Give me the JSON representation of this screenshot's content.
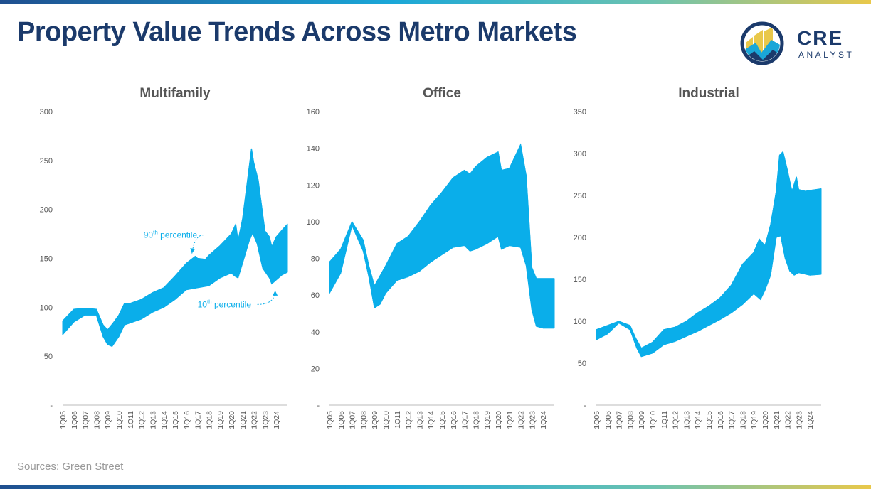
{
  "page": {
    "title": "Property Value Trends Across Metro Markets",
    "source": "Sources: Green Street",
    "logo": {
      "name": "CRE",
      "sub": "ANALYST"
    }
  },
  "colors": {
    "band": "#0aaeea",
    "title": "#1b3a6b",
    "axis": "#555555"
  },
  "chart_data": [
    {
      "type": "area",
      "title": "Multifamily",
      "ylim": [
        0,
        300
      ],
      "yticks": [
        0,
        50,
        100,
        150,
        200,
        250,
        300
      ],
      "ytick_labels": [
        "-",
        "50",
        "100",
        "150",
        "200",
        "250",
        "300"
      ],
      "categories": [
        "1Q05",
        "1Q06",
        "1Q07",
        "1Q08",
        "1Q09",
        "1Q10",
        "1Q11",
        "1Q12",
        "1Q13",
        "1Q14",
        "1Q15",
        "1Q16",
        "1Q17",
        "1Q18",
        "1Q19",
        "1Q20",
        "1Q21",
        "1Q22",
        "1Q23",
        "1Q24"
      ],
      "series": [
        {
          "name": "90th percentile",
          "values": [
            [
              2005.0,
              86
            ],
            [
              2006.0,
              98
            ],
            [
              2007.0,
              99
            ],
            [
              2008.0,
              98
            ],
            [
              2008.6,
              82
            ],
            [
              2009.0,
              77
            ],
            [
              2009.5,
              84
            ],
            [
              2010.0,
              92
            ],
            [
              2010.5,
              104
            ],
            [
              2011.0,
              104
            ],
            [
              2012.0,
              108
            ],
            [
              2013.0,
              115
            ],
            [
              2014.0,
              120
            ],
            [
              2015.0,
              132
            ],
            [
              2016.0,
              145
            ],
            [
              2016.8,
              152
            ],
            [
              2017.0,
              150
            ],
            [
              2017.7,
              149
            ],
            [
              2018.0,
              153
            ],
            [
              2019.0,
              163
            ],
            [
              2020.0,
              175
            ],
            [
              2020.4,
              185
            ],
            [
              2020.6,
              168
            ],
            [
              2021.0,
              190
            ],
            [
              2021.5,
              235
            ],
            [
              2021.8,
              262
            ],
            [
              2022.0,
              248
            ],
            [
              2022.4,
              230
            ],
            [
              2022.8,
              195
            ],
            [
              2023.0,
              178
            ],
            [
              2023.4,
              172
            ],
            [
              2023.6,
              162
            ],
            [
              2024.0,
              172
            ],
            [
              2024.6,
              180
            ],
            [
              2025.0,
              185
            ]
          ]
        },
        {
          "name": "10th percentile",
          "values": [
            [
              2005.0,
              72
            ],
            [
              2006.0,
              85
            ],
            [
              2007.0,
              92
            ],
            [
              2008.0,
              92
            ],
            [
              2008.6,
              70
            ],
            [
              2009.0,
              62
            ],
            [
              2009.4,
              60
            ],
            [
              2010.0,
              70
            ],
            [
              2010.5,
              82
            ],
            [
              2011.0,
              84
            ],
            [
              2012.0,
              88
            ],
            [
              2013.0,
              95
            ],
            [
              2014.0,
              100
            ],
            [
              2015.0,
              108
            ],
            [
              2016.0,
              118
            ],
            [
              2017.0,
              120
            ],
            [
              2018.0,
              122
            ],
            [
              2019.0,
              130
            ],
            [
              2020.0,
              135
            ],
            [
              2020.3,
              132
            ],
            [
              2020.6,
              130
            ],
            [
              2021.0,
              145
            ],
            [
              2021.6,
              168
            ],
            [
              2021.9,
              176
            ],
            [
              2022.3,
              165
            ],
            [
              2022.8,
              140
            ],
            [
              2023.4,
              130
            ],
            [
              2023.6,
              124
            ],
            [
              2024.0,
              128
            ],
            [
              2024.5,
              133
            ],
            [
              2025.0,
              136
            ]
          ]
        }
      ],
      "annotations": [
        {
          "text": "90th percentile",
          "sup": "th",
          "base": "90",
          "rest": " percentile",
          "x": 2012.2,
          "y": 171,
          "target_x": 2016.5,
          "target_y": 155
        },
        {
          "text": "10th percentile",
          "sup": "th",
          "base": "10",
          "rest": " percentile",
          "x": 2017.0,
          "y": 100,
          "target_x": 2023.9,
          "target_y": 117
        }
      ]
    },
    {
      "type": "area",
      "title": "Office",
      "ylim": [
        0,
        160
      ],
      "yticks": [
        0,
        20,
        40,
        60,
        80,
        100,
        120,
        140,
        160
      ],
      "ytick_labels": [
        "-",
        "20",
        "40",
        "60",
        "80",
        "100",
        "120",
        "140",
        "160"
      ],
      "categories": [
        "1Q05",
        "1Q06",
        "1Q07",
        "1Q08",
        "1Q09",
        "1Q10",
        "1Q11",
        "1Q12",
        "1Q13",
        "1Q14",
        "1Q15",
        "1Q16",
        "1Q17",
        "1Q18",
        "1Q19",
        "1Q20",
        "1Q21",
        "1Q22",
        "1Q23",
        "1Q24"
      ],
      "series": [
        {
          "name": "90th percentile",
          "values": [
            [
              2005.0,
              78
            ],
            [
              2006.0,
              85
            ],
            [
              2007.0,
              100
            ],
            [
              2008.0,
              90
            ],
            [
              2008.5,
              76
            ],
            [
              2009.0,
              65
            ],
            [
              2010.0,
              76
            ],
            [
              2011.0,
              88
            ],
            [
              2012.0,
              92
            ],
            [
              2013.0,
              100
            ],
            [
              2014.0,
              109
            ],
            [
              2015.0,
              116
            ],
            [
              2016.0,
              124
            ],
            [
              2017.0,
              128
            ],
            [
              2017.5,
              126
            ],
            [
              2018.0,
              130
            ],
            [
              2019.0,
              135
            ],
            [
              2020.0,
              138
            ],
            [
              2020.3,
              128
            ],
            [
              2021.0,
              129
            ],
            [
              2022.0,
              142
            ],
            [
              2022.5,
              125
            ],
            [
              2023.0,
              75
            ],
            [
              2023.4,
              69
            ],
            [
              2024.0,
              69
            ],
            [
              2025.0,
              69
            ]
          ]
        },
        {
          "name": "10th percentile",
          "values": [
            [
              2005.0,
              61
            ],
            [
              2006.0,
              72
            ],
            [
              2007.0,
              98
            ],
            [
              2008.0,
              84
            ],
            [
              2008.5,
              70
            ],
            [
              2009.0,
              53
            ],
            [
              2009.5,
              55
            ],
            [
              2010.0,
              61
            ],
            [
              2011.0,
              68
            ],
            [
              2012.0,
              70
            ],
            [
              2013.0,
              73
            ],
            [
              2014.0,
              78
            ],
            [
              2015.0,
              82
            ],
            [
              2016.0,
              86
            ],
            [
              2017.0,
              87
            ],
            [
              2017.5,
              84
            ],
            [
              2018.0,
              85
            ],
            [
              2019.0,
              88
            ],
            [
              2020.0,
              92
            ],
            [
              2020.3,
              85
            ],
            [
              2021.0,
              87
            ],
            [
              2022.0,
              86
            ],
            [
              2022.5,
              76
            ],
            [
              2023.0,
              52
            ],
            [
              2023.4,
              43
            ],
            [
              2024.0,
              42
            ],
            [
              2025.0,
              42
            ]
          ]
        }
      ]
    },
    {
      "type": "area",
      "title": "Industrial",
      "ylim": [
        0,
        350
      ],
      "yticks": [
        0,
        50,
        100,
        150,
        200,
        250,
        300,
        350
      ],
      "ytick_labels": [
        "-",
        "50",
        "100",
        "150",
        "200",
        "250",
        "300",
        "350"
      ],
      "categories": [
        "1Q05",
        "1Q06",
        "1Q07",
        "1Q08",
        "1Q09",
        "1Q10",
        "1Q11",
        "1Q12",
        "1Q13",
        "1Q14",
        "1Q15",
        "1Q16",
        "1Q17",
        "1Q18",
        "1Q19",
        "1Q20",
        "1Q21",
        "1Q22",
        "1Q23",
        "1Q24"
      ],
      "series": [
        {
          "name": "90th percentile",
          "values": [
            [
              2005.0,
              90
            ],
            [
              2006.0,
              95
            ],
            [
              2007.0,
              100
            ],
            [
              2008.0,
              95
            ],
            [
              2008.5,
              80
            ],
            [
              2009.0,
              68
            ],
            [
              2010.0,
              75
            ],
            [
              2011.0,
              90
            ],
            [
              2012.0,
              93
            ],
            [
              2013.0,
              100
            ],
            [
              2014.0,
              110
            ],
            [
              2015.0,
              118
            ],
            [
              2016.0,
              128
            ],
            [
              2017.0,
              143
            ],
            [
              2018.0,
              168
            ],
            [
              2019.0,
              182
            ],
            [
              2019.5,
              198
            ],
            [
              2020.0,
              190
            ],
            [
              2020.5,
              215
            ],
            [
              2021.0,
              255
            ],
            [
              2021.3,
              298
            ],
            [
              2021.6,
              302
            ],
            [
              2022.0,
              280
            ],
            [
              2022.4,
              255
            ],
            [
              2022.8,
              272
            ],
            [
              2023.0,
              257
            ],
            [
              2023.6,
              255
            ],
            [
              2024.0,
              256
            ],
            [
              2025.0,
              258
            ]
          ]
        },
        {
          "name": "10th percentile",
          "values": [
            [
              2005.0,
              78
            ],
            [
              2006.0,
              85
            ],
            [
              2007.0,
              98
            ],
            [
              2008.0,
              90
            ],
            [
              2008.6,
              68
            ],
            [
              2009.0,
              58
            ],
            [
              2010.0,
              62
            ],
            [
              2011.0,
              72
            ],
            [
              2012.0,
              76
            ],
            [
              2013.0,
              82
            ],
            [
              2014.0,
              88
            ],
            [
              2015.0,
              95
            ],
            [
              2016.0,
              102
            ],
            [
              2017.0,
              110
            ],
            [
              2018.0,
              120
            ],
            [
              2019.0,
              133
            ],
            [
              2019.6,
              126
            ],
            [
              2020.0,
              137
            ],
            [
              2020.5,
              155
            ],
            [
              2021.0,
              200
            ],
            [
              2021.4,
              202
            ],
            [
              2021.8,
              175
            ],
            [
              2022.2,
              160
            ],
            [
              2022.6,
              155
            ],
            [
              2023.0,
              158
            ],
            [
              2024.0,
              155
            ],
            [
              2025.0,
              156
            ]
          ]
        }
      ]
    }
  ]
}
